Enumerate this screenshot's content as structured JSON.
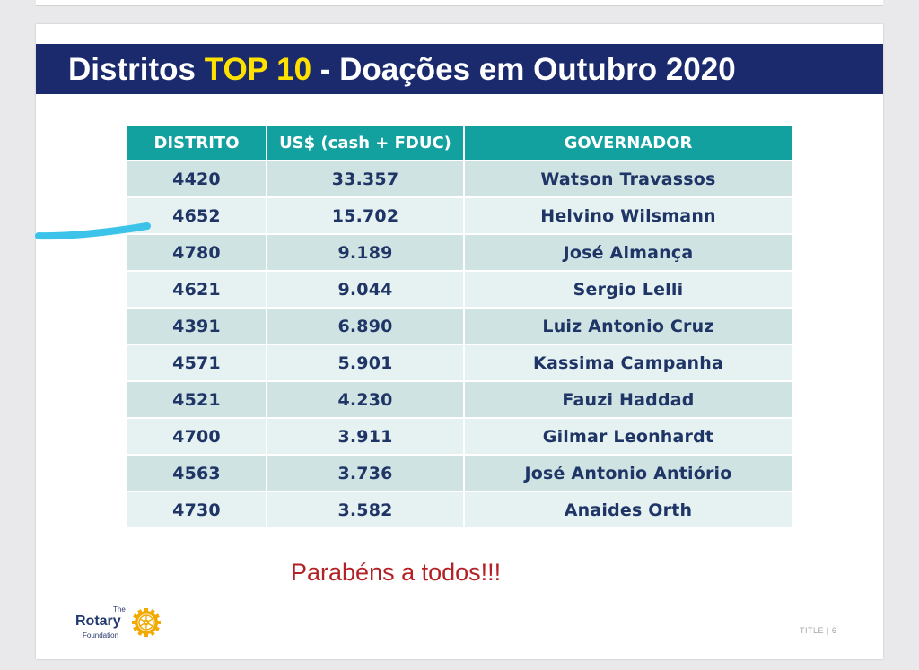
{
  "title": {
    "prefix": "Distritos ",
    "highlight": "TOP 10",
    "suffix": " - Doações em Outubro 2020"
  },
  "table": {
    "headers": [
      "DISTRITO",
      "US$ (cash + FDUC)",
      "GOVERNADOR"
    ],
    "rows": [
      [
        "4420",
        "33.357",
        "Watson Travassos"
      ],
      [
        "4652",
        "15.702",
        "Helvino Wilsmann"
      ],
      [
        "4780",
        "9.189",
        "José Almança"
      ],
      [
        "4621",
        "9.044",
        "Sergio Lelli"
      ],
      [
        "4391",
        "6.890",
        "Luiz Antonio Cruz"
      ],
      [
        "4571",
        "5.901",
        "Kassima Campanha"
      ],
      [
        "4521",
        "4.230",
        "Fauzi Haddad"
      ],
      [
        "4700",
        "3.911",
        "Gilmar Leonhardt"
      ],
      [
        "4563",
        "3.736",
        "José Antonio Antiório"
      ],
      [
        "4730",
        "3.582",
        "Anaides Orth"
      ]
    ]
  },
  "message": "Parabéns a todos!!!",
  "logo": {
    "the": "The",
    "name": "Rotary",
    "sub": "Foundation",
    "icon": "rotary-wheel-icon"
  },
  "footer": "TITLE | 6",
  "colors": {
    "title_bar": "#1a2a6c",
    "title_highlight": "#ffe100",
    "header": "#12a19f",
    "row_dark": "#cfe3e3",
    "row_light": "#e6f1f1",
    "message": "#b32025",
    "marker": "#3cc3ea"
  }
}
